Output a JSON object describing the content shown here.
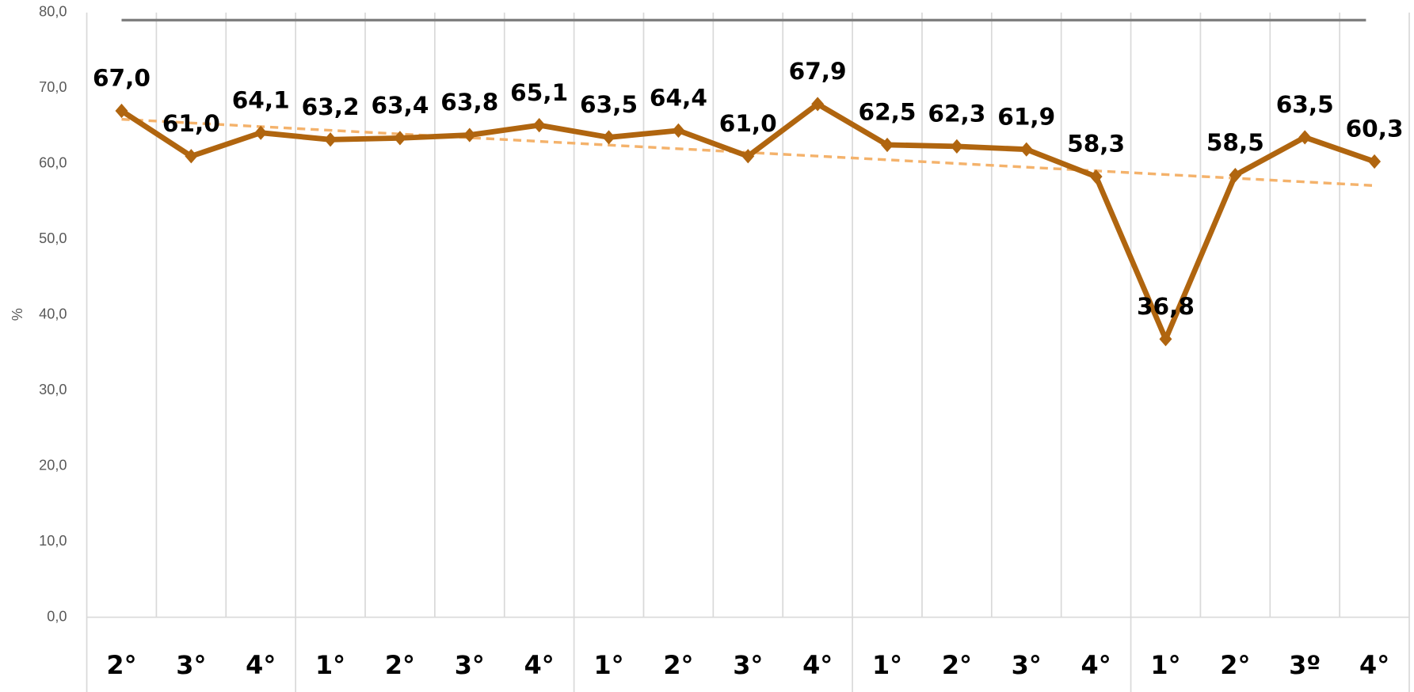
{
  "chart_data": {
    "type": "line",
    "y_label": "%",
    "categories": [
      "2°",
      "3°",
      "4°",
      "1°",
      "2°",
      "3°",
      "4°",
      "1°",
      "2°",
      "3°",
      "4°",
      "1°",
      "2°",
      "3°",
      "4°",
      "1°",
      "2°",
      "3º",
      "4°"
    ],
    "series": [
      {
        "color": "#b0650f",
        "values": [
          67.0,
          61.0,
          64.1,
          63.2,
          63.4,
          63.8,
          65.1,
          63.5,
          64.4,
          61.0,
          67.9,
          62.5,
          62.3,
          61.9,
          58.3,
          36.8,
          58.5,
          63.5,
          60.3
        ],
        "value_labels": [
          "67,0",
          "61,0",
          "64,1",
          "63,2",
          "63,4",
          "63,8",
          "65,1",
          "63,5",
          "64,4",
          "61,0",
          "67,9",
          "62,5",
          "62,3",
          "61,9",
          "58,3",
          "36,8",
          "58,5",
          "63,5",
          "60,3"
        ]
      }
    ],
    "reference_line": {
      "value": 79,
      "color": "#7f7f7f"
    },
    "trendline": {
      "color": "#f4b26b"
    },
    "ylim": [
      0,
      80
    ],
    "yticks": [
      {
        "value": 0,
        "label": "0,0"
      },
      {
        "value": 10,
        "label": "10,0"
      },
      {
        "value": 20,
        "label": "20,0"
      },
      {
        "value": 30,
        "label": "30,0"
      },
      {
        "value": 40,
        "label": "40,0"
      },
      {
        "value": 50,
        "label": "50,0"
      },
      {
        "value": 60,
        "label": "60,0"
      },
      {
        "value": 70,
        "label": "70,0"
      },
      {
        "value": 80,
        "label": "80,0"
      }
    ],
    "grid": true
  }
}
